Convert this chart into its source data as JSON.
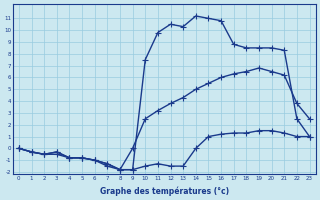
{
  "xlabel": "Graphe des températures (°c)",
  "x": [
    0,
    1,
    2,
    3,
    4,
    5,
    6,
    7,
    8,
    9,
    10,
    11,
    12,
    13,
    14,
    15,
    16,
    17,
    18,
    19,
    20,
    21,
    22,
    23
  ],
  "line_max": [
    0,
    -0.3,
    -0.5,
    -0.3,
    -0.8,
    -0.8,
    -1.0,
    -1.5,
    -1.8,
    -1.8,
    7.5,
    9.8,
    10.5,
    10.3,
    11.2,
    11.0,
    10.8,
    8.8,
    8.5,
    8.5,
    8.5,
    8.3,
    2.5,
    1.0
  ],
  "line_mean": [
    0,
    -0.3,
    -0.5,
    -0.3,
    -0.8,
    -0.8,
    -1.0,
    -1.3,
    -1.8,
    0.0,
    2.5,
    3.2,
    3.8,
    4.3,
    5.0,
    5.5,
    6.0,
    6.3,
    6.5,
    6.8,
    6.5,
    6.2,
    3.8,
    2.5
  ],
  "line_min": [
    0,
    -0.3,
    -0.5,
    -0.5,
    -0.8,
    -0.8,
    -1.0,
    -1.3,
    -1.8,
    -1.8,
    -1.5,
    -1.3,
    -1.5,
    -1.5,
    0.0,
    1.0,
    1.2,
    1.3,
    1.3,
    1.5,
    1.5,
    1.3,
    1.0,
    1.0
  ],
  "line_color": "#1a3a8c",
  "bg_color": "#cce8f0",
  "grid_color": "#99cce0",
  "ylim_min": -2,
  "ylim_max": 12,
  "yticks": [
    -2,
    -1,
    0,
    1,
    2,
    3,
    4,
    5,
    6,
    7,
    8,
    9,
    10,
    11
  ],
  "xticks": [
    0,
    1,
    2,
    3,
    4,
    5,
    6,
    7,
    8,
    9,
    10,
    11,
    12,
    13,
    14,
    15,
    16,
    17,
    18,
    19,
    20,
    21,
    22,
    23
  ],
  "marker": "+",
  "markersize": 4,
  "linewidth": 1.0
}
